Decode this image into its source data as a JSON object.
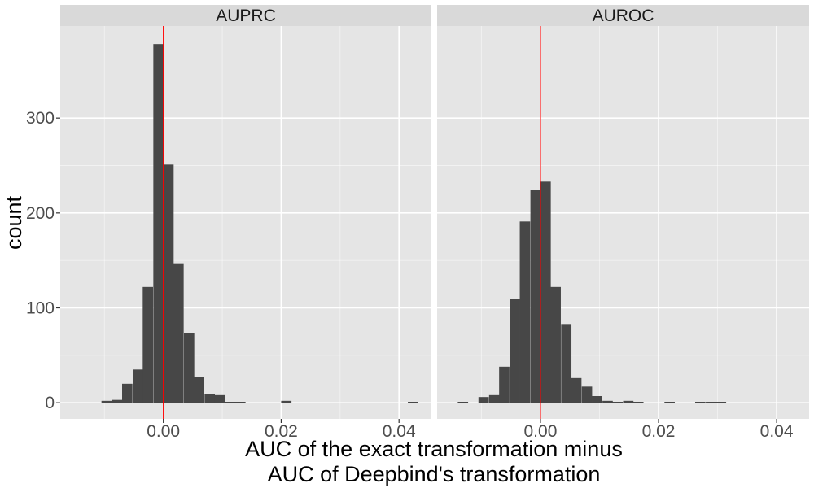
{
  "colors": {
    "panel_background": "#e5e5e5",
    "grid_major": "#ffffff",
    "strip_background": "#d9d9d9",
    "bar_fill": "#474747",
    "reference_line": "#ff0000",
    "tick_text": "#4d4d4d",
    "title_text": "#000000"
  },
  "chart_data": {
    "type": "histogram",
    "facet_by": "metric",
    "x_title_lines": [
      "AUC of the exact transformation minus",
      "AUC of Deepbind's transformation"
    ],
    "ylabel": "count",
    "xlim": [
      -0.0175,
      0.0455
    ],
    "ylim": [
      -17,
      397
    ],
    "x_ticks": [
      0.0,
      0.02,
      0.04
    ],
    "x_tick_labels": [
      "0.00",
      "0.02",
      "0.04"
    ],
    "y_ticks": [
      0,
      100,
      200,
      300
    ],
    "y_tick_labels": [
      "0",
      "100",
      "200",
      "300"
    ],
    "reference_line_x": 0.0,
    "bin_width": 0.00175,
    "facets": [
      {
        "label": "AUPRC",
        "bins": [
          {
            "start": -0.0105,
            "count": 2
          },
          {
            "start": -0.0087,
            "count": 3
          },
          {
            "start": -0.007,
            "count": 20
          },
          {
            "start": -0.0052,
            "count": 35
          },
          {
            "start": -0.0035,
            "count": 122
          },
          {
            "start": -0.0017,
            "count": 378
          },
          {
            "start": 0.0,
            "count": 251
          },
          {
            "start": 0.0017,
            "count": 147
          },
          {
            "start": 0.0035,
            "count": 73
          },
          {
            "start": 0.0052,
            "count": 27
          },
          {
            "start": 0.007,
            "count": 9
          },
          {
            "start": 0.0087,
            "count": 8
          },
          {
            "start": 0.0105,
            "count": 1
          },
          {
            "start": 0.0122,
            "count": 1
          },
          {
            "start": 0.02,
            "count": 2
          },
          {
            "start": 0.0415,
            "count": 1
          }
        ]
      },
      {
        "label": "AUROC",
        "bins": [
          {
            "start": -0.014,
            "count": 1
          },
          {
            "start": -0.0105,
            "count": 6
          },
          {
            "start": -0.0087,
            "count": 8
          },
          {
            "start": -0.007,
            "count": 38
          },
          {
            "start": -0.0052,
            "count": 109
          },
          {
            "start": -0.0035,
            "count": 191
          },
          {
            "start": -0.0017,
            "count": 224
          },
          {
            "start": 0.0,
            "count": 233
          },
          {
            "start": 0.0017,
            "count": 122
          },
          {
            "start": 0.0035,
            "count": 83
          },
          {
            "start": 0.0052,
            "count": 26
          },
          {
            "start": 0.007,
            "count": 17
          },
          {
            "start": 0.0087,
            "count": 7
          },
          {
            "start": 0.0105,
            "count": 2
          },
          {
            "start": 0.0122,
            "count": 1
          },
          {
            "start": 0.014,
            "count": 2
          },
          {
            "start": 0.0157,
            "count": 1
          },
          {
            "start": 0.021,
            "count": 1
          },
          {
            "start": 0.0262,
            "count": 1
          },
          {
            "start": 0.028,
            "count": 1
          },
          {
            "start": 0.0297,
            "count": 1
          }
        ]
      }
    ]
  }
}
